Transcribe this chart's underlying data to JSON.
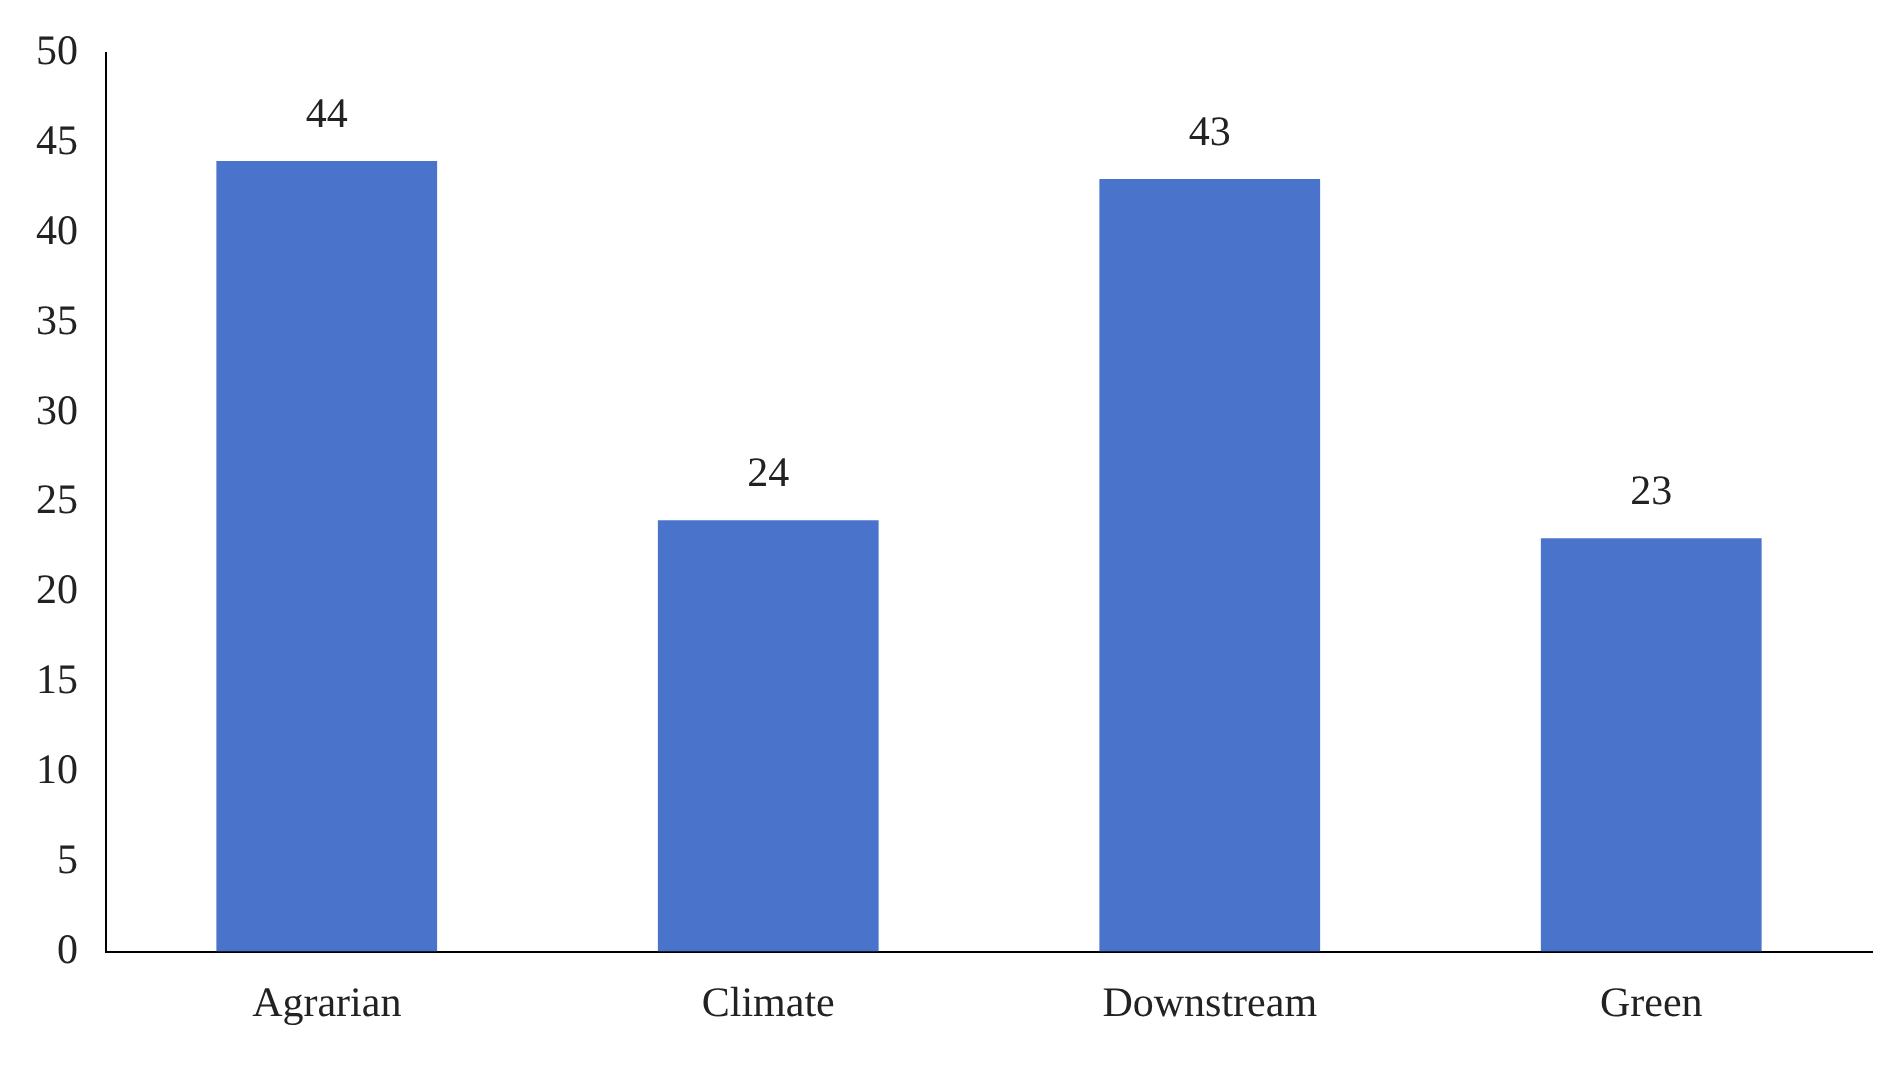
{
  "chart_data": {
    "type": "bar",
    "categories": [
      "Agrarian",
      "Climate",
      "Downstream",
      "Green"
    ],
    "values": [
      44,
      24,
      43,
      23
    ],
    "color": "#4a74cc",
    "ylim": [
      0,
      50
    ],
    "yticks": [
      0,
      5,
      10,
      15,
      20,
      25,
      30,
      35,
      40,
      45,
      50
    ],
    "grid": false,
    "legend": false,
    "data_labels": true
  }
}
